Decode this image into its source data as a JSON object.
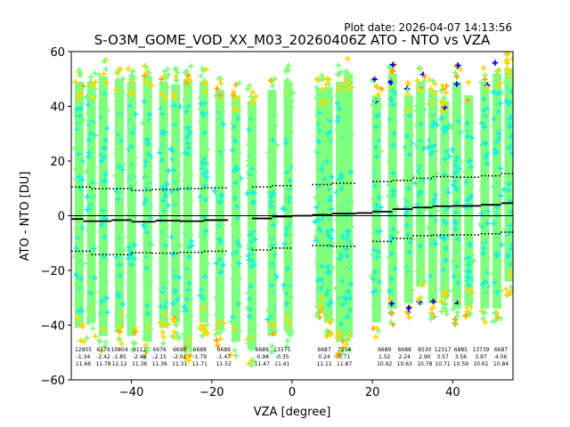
{
  "chart_data": {
    "type": "scatter",
    "title": "S-O3M_GOME_VOD_XX_M03_20260406Z ATO - NTO vs VZA",
    "plot_date": "Plot date: 2026-04-07 14:13:56",
    "xlabel": "VZA [degree]",
    "ylabel": "ATO - NTO [DU]",
    "xlim": [
      -55,
      55
    ],
    "ylim": [
      -60,
      60
    ],
    "xticks": [
      -40,
      -20,
      0,
      20,
      40
    ],
    "xtick_labels": [
      "−40",
      "−20",
      "0",
      "20",
      "40"
    ],
    "yticks": [
      -60,
      -40,
      -20,
      0,
      20,
      40,
      60
    ],
    "ytick_labels": [
      "−60",
      "−40",
      "−20",
      "0",
      "20",
      "40",
      "60"
    ],
    "zero_line": 0,
    "colors": {
      "light_green": "#80ff7f",
      "cyan": "#18f0e0",
      "gold": "#ffd700",
      "orange": "#ffa500",
      "blue": "#0000ff",
      "black": "#000000"
    },
    "scatter_columns": [
      {
        "vza": -53,
        "ymin": -47,
        "ymax": 55
      },
      {
        "vza": -50,
        "ymin": -45,
        "ymax": 55
      },
      {
        "vza": -47,
        "ymin": -50,
        "ymax": 57
      },
      {
        "vza": -43,
        "ymin": -47,
        "ymax": 56
      },
      {
        "vza": -40,
        "ymin": -50,
        "ymax": 55
      },
      {
        "vza": -36,
        "ymin": -52,
        "ymax": 57
      },
      {
        "vza": -32,
        "ymin": -47,
        "ymax": 55
      },
      {
        "vza": -29,
        "ymin": -45,
        "ymax": 54
      },
      {
        "vza": -26,
        "ymin": -55,
        "ymax": 56
      },
      {
        "vza": -22,
        "ymin": -45,
        "ymax": 55
      },
      {
        "vza": -18,
        "ymin": -48,
        "ymax": 52
      },
      {
        "vza": -14,
        "ymin": -52,
        "ymax": 50
      },
      {
        "vza": -10,
        "ymin": -55,
        "ymax": 48
      },
      {
        "vza": -5,
        "ymin": -50,
        "ymax": 52
      },
      {
        "vza": -1,
        "ymin": -48,
        "ymax": 55
      },
      {
        "vza": 7,
        "ymin": -40,
        "ymax": 52
      },
      {
        "vza": 9,
        "ymin": -45,
        "ymax": 53
      },
      {
        "vza": 12,
        "ymin": -52,
        "ymax": 55
      },
      {
        "vza": 14,
        "ymin": -50,
        "ymax": 58
      },
      {
        "vza": 21,
        "ymin": -45,
        "ymax": 50
      },
      {
        "vza": 25,
        "ymin": -40,
        "ymax": 58
      },
      {
        "vza": 29,
        "ymin": -38,
        "ymax": 50
      },
      {
        "vza": 32,
        "ymin": -32,
        "ymax": 55
      },
      {
        "vza": 35,
        "ymin": -38,
        "ymax": 52
      },
      {
        "vza": 38,
        "ymin": -36,
        "ymax": 48
      },
      {
        "vza": 41,
        "ymin": -40,
        "ymax": 55
      },
      {
        "vza": 44,
        "ymin": -38,
        "ymax": 50
      },
      {
        "vza": 48,
        "ymin": -40,
        "ymax": 55
      },
      {
        "vza": 51,
        "ymin": -40,
        "ymax": 58
      },
      {
        "vza": 54,
        "ymin": -30,
        "ymax": 60
      }
    ],
    "mean_line": [
      {
        "x0": -55,
        "x1": -52,
        "y": -1.2
      },
      {
        "x0": -52,
        "x1": -45,
        "y": -2.0
      },
      {
        "x0": -45,
        "x1": -40,
        "y": -1.6
      },
      {
        "x0": -40,
        "x1": -34,
        "y": -2.2
      },
      {
        "x0": -34,
        "x1": -28,
        "y": -1.8
      },
      {
        "x0": -28,
        "x1": -22,
        "y": -2.0
      },
      {
        "x0": -22,
        "x1": -16,
        "y": -1.6
      },
      {
        "x0": -10,
        "x1": -5,
        "y": -1.0
      },
      {
        "x0": -5,
        "x1": 0,
        "y": -0.3
      },
      {
        "x0": 0,
        "x1": 5,
        "y": 0.0
      },
      {
        "x0": 5,
        "x1": 10,
        "y": 0.3
      },
      {
        "x0": 10,
        "x1": 16,
        "y": 0.8
      },
      {
        "x0": 16,
        "x1": 20,
        "y": 1.0
      },
      {
        "x0": 20,
        "x1": 25,
        "y": 1.5
      },
      {
        "x0": 25,
        "x1": 30,
        "y": 2.4
      },
      {
        "x0": 30,
        "x1": 35,
        "y": 3.0
      },
      {
        "x0": 35,
        "x1": 40,
        "y": 3.5
      },
      {
        "x0": 40,
        "x1": 47,
        "y": 3.6
      },
      {
        "x0": 47,
        "x1": 52,
        "y": 4.0
      },
      {
        "x0": 52,
        "x1": 55,
        "y": 4.6
      }
    ],
    "upper_dotted": [
      {
        "x0": -55,
        "x1": -50,
        "y": 10.5
      },
      {
        "x0": -50,
        "x1": -40,
        "y": 9.9
      },
      {
        "x0": -40,
        "x1": -35,
        "y": 9.2
      },
      {
        "x0": -35,
        "x1": -28,
        "y": 9.6
      },
      {
        "x0": -28,
        "x1": -22,
        "y": 9.9
      },
      {
        "x0": -22,
        "x1": -16,
        "y": 10.2
      },
      {
        "x0": -10,
        "x1": -5,
        "y": 10.5
      },
      {
        "x0": -5,
        "x1": 0,
        "y": 11.0
      },
      {
        "x0": 5,
        "x1": 10,
        "y": 11.4
      },
      {
        "x0": 10,
        "x1": 16,
        "y": 11.9
      },
      {
        "x0": 20,
        "x1": 25,
        "y": 12.5
      },
      {
        "x0": 25,
        "x1": 30,
        "y": 12.9
      },
      {
        "x0": 30,
        "x1": 35,
        "y": 13.7
      },
      {
        "x0": 35,
        "x1": 40,
        "y": 14.3
      },
      {
        "x0": 40,
        "x1": 47,
        "y": 14.1
      },
      {
        "x0": 47,
        "x1": 52,
        "y": 14.6
      },
      {
        "x0": 52,
        "x1": 55,
        "y": 15.4
      }
    ],
    "lower_dotted": [
      {
        "x0": -55,
        "x1": -50,
        "y": -13.0
      },
      {
        "x0": -50,
        "x1": -40,
        "y": -14.2
      },
      {
        "x0": -40,
        "x1": -35,
        "y": -13.5
      },
      {
        "x0": -35,
        "x1": -28,
        "y": -13.7
      },
      {
        "x0": -28,
        "x1": -22,
        "y": -13.4
      },
      {
        "x0": -22,
        "x1": -16,
        "y": -13.0
      },
      {
        "x0": -10,
        "x1": -5,
        "y": -12.5
      },
      {
        "x0": -5,
        "x1": 0,
        "y": -11.8
      },
      {
        "x0": 5,
        "x1": 10,
        "y": -10.9
      },
      {
        "x0": 10,
        "x1": 16,
        "y": -11.2
      },
      {
        "x0": 20,
        "x1": 25,
        "y": -9.4
      },
      {
        "x0": 25,
        "x1": 30,
        "y": -8.3
      },
      {
        "x0": 30,
        "x1": 35,
        "y": -7.3
      },
      {
        "x0": 35,
        "x1": 40,
        "y": -7.1
      },
      {
        "x0": 40,
        "x1": 47,
        "y": -7.0
      },
      {
        "x0": 47,
        "x1": 52,
        "y": -6.6
      },
      {
        "x0": 52,
        "x1": 55,
        "y": -6.0
      }
    ],
    "annotations": [
      {
        "vza": -52,
        "count": "12905",
        "mean": "-1.34",
        "std": "11.66"
      },
      {
        "vza": -47,
        "count": "6579",
        "mean": "-2.42",
        "std": "11.78"
      },
      {
        "vza": -43,
        "count": "10804",
        "mean": "-1.85",
        "std": "12.12"
      },
      {
        "vza": -38,
        "count": "9112",
        "mean": "-2.48",
        "std": "11.36"
      },
      {
        "vza": -33,
        "count": "6676",
        "mean": "-2.15",
        "std": "11.36"
      },
      {
        "vza": -28,
        "count": "6696",
        "mean": "-2.01",
        "std": "11.31"
      },
      {
        "vza": -23,
        "count": "6688",
        "mean": "-1.79",
        "std": "11.71"
      },
      {
        "vza": -17,
        "count": "6689",
        "mean": "-1.47",
        "std": "11.52"
      },
      {
        "vza": -7.5,
        "count": "6689",
        "mean": "-0.98",
        "std": "11.47"
      },
      {
        "vza": -2.5,
        "count": "13375",
        "mean": "-0.35",
        "std": "11.41"
      },
      {
        "vza": 8,
        "count": "6687",
        "mean": "0.24",
        "std": "11.11"
      },
      {
        "vza": 13,
        "count": "7254",
        "mean": "0.71",
        "std": "11.87"
      },
      {
        "vza": 23,
        "count": "6689",
        "mean": "1.52",
        "std": "10.92"
      },
      {
        "vza": 28,
        "count": "6688",
        "mean": "2.24",
        "std": "10.63"
      },
      {
        "vza": 33,
        "count": "8530",
        "mean": "2.90",
        "std": "10.78"
      },
      {
        "vza": 37.5,
        "count": "12317",
        "mean": "3.57",
        "std": "10.71"
      },
      {
        "vza": 42,
        "count": "6885",
        "mean": "3.56",
        "std": "10.59"
      },
      {
        "vza": 47,
        "count": "13739",
        "mean": "3.97",
        "std": "10.61"
      },
      {
        "vza": 52,
        "count": "6687",
        "mean": "4.56",
        "std": "10.84"
      }
    ]
  }
}
